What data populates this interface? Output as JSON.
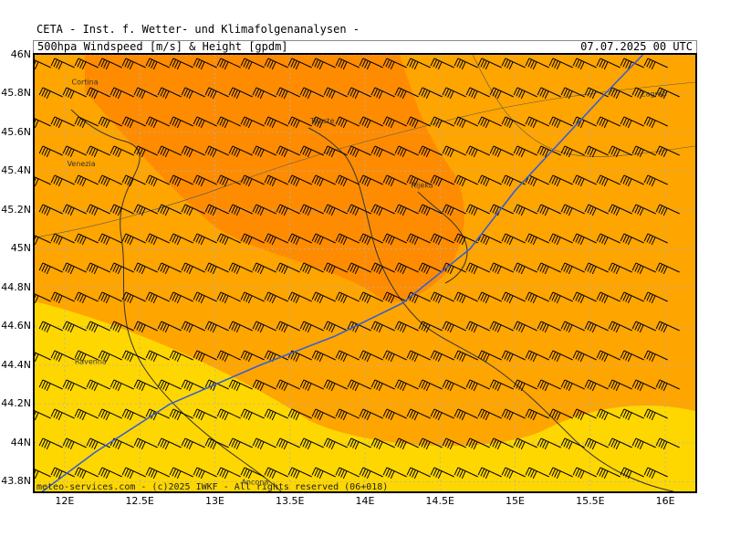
{
  "header": {
    "title": "CETA - Inst. f. Wetter- und Klimafolgenanalysen -",
    "subtitle": "500hpa Windspeed [m/s] & Height [gpdm]",
    "datetime": "07.07.2025 00 UTC"
  },
  "credit": "meteo-services.com - (c)2025 IWKF - All rights reserved (06+018)",
  "map": {
    "lat_labels": [
      "46N",
      "45.8N",
      "45.6N",
      "45.4N",
      "45.2N",
      "45N",
      "44.8N",
      "44.6N",
      "44.4N",
      "44.2N",
      "44N",
      "43.8N"
    ],
    "lon_labels": [
      "12E",
      "12.5E",
      "13E",
      "13.5E",
      "14E",
      "14.5E",
      "15E",
      "15.5E",
      "16E"
    ],
    "lat_range": [
      43.75,
      46.0
    ],
    "lon_range": [
      11.8,
      16.2
    ],
    "cities": [
      {
        "name": "Cortina",
        "lat": 45.86,
        "lon": 12.18
      },
      {
        "name": "Trieste",
        "lat": 45.66,
        "lon": 13.77
      },
      {
        "name": "Venezia",
        "lat": 45.44,
        "lon": 12.15
      },
      {
        "name": "Rijeka",
        "lat": 45.33,
        "lon": 14.44
      },
      {
        "name": "Zagreb",
        "lat": 45.8,
        "lon": 15.97
      },
      {
        "name": "Ravenna",
        "lat": 44.42,
        "lon": 12.2
      },
      {
        "name": "Ancona",
        "lat": 43.8,
        "lon": 13.31
      }
    ],
    "colors": {
      "speed_high": "#ff8c00",
      "speed_mid": "#ffa500",
      "speed_low": "#ffd700",
      "height_contour": "#3a5fcd",
      "coastline": "#333333",
      "grid": "#b0b0b0"
    },
    "height_contour_points": [
      {
        "lat": 43.72,
        "lon": 11.8
      },
      {
        "lat": 43.95,
        "lon": 12.2
      },
      {
        "lat": 44.2,
        "lon": 12.7
      },
      {
        "lat": 44.4,
        "lon": 13.3
      },
      {
        "lat": 44.55,
        "lon": 13.8
      },
      {
        "lat": 44.72,
        "lon": 14.25
      },
      {
        "lat": 45.0,
        "lon": 14.7
      },
      {
        "lat": 45.3,
        "lon": 15.0
      },
      {
        "lat": 45.55,
        "lon": 15.3
      },
      {
        "lat": 45.8,
        "lon": 15.6
      },
      {
        "lat": 46.0,
        "lon": 15.85
      }
    ],
    "wind_barb": {
      "direction_deg": 245,
      "speed": 30
    }
  }
}
